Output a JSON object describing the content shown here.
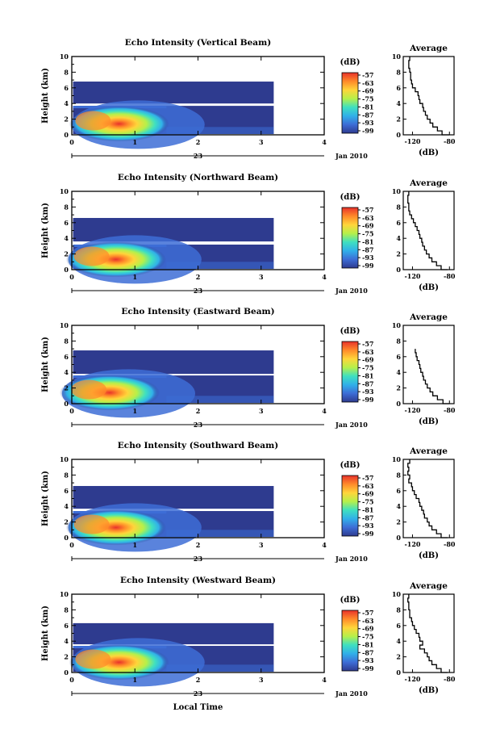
{
  "chart_data": [
    {
      "type": "heatmap",
      "title": "Echo Intensity (Vertical Beam)",
      "ylabel": "Height (km)",
      "xlim": [
        0,
        4
      ],
      "ylim": [
        0,
        10
      ],
      "xticks": [
        "0",
        "1",
        "2",
        "3",
        "4"
      ],
      "yticks": [
        "0",
        "2",
        "4",
        "6",
        "8",
        "10"
      ],
      "day_label": "23",
      "date_label": "Jan 2010",
      "colorbar": {
        "label": "(dB)",
        "ticks": [
          "-57",
          "-63",
          "-69",
          "-75",
          "-81",
          "-87",
          "-93",
          "-99"
        ]
      },
      "data_extent_hours": 3.2,
      "cloud_top_km": 6.8,
      "gap_km": [
        3.7,
        4.0
      ],
      "core_peak_km": 1.0,
      "core_peak_hour": 0.75,
      "profile": {
        "title": "Average",
        "xlabel": "(dB)",
        "xticks": [
          "-120",
          "-80"
        ],
        "xlim": [
          -130,
          -75
        ],
        "ylim": [
          0,
          10
        ],
        "heights": [
          0,
          0.5,
          1,
          1.5,
          2,
          2.5,
          3,
          3.5,
          4,
          4.5,
          5,
          5.5,
          6,
          6.5,
          7,
          7.5,
          8,
          8.5,
          9,
          9.5,
          10
        ],
        "values": [
          -80,
          -88,
          -93,
          -98,
          -101,
          -104,
          -106,
          -108,
          -109,
          -112,
          -113,
          -114,
          -117,
          -120,
          -121,
          -122,
          -122,
          -123,
          -124,
          -124,
          -123
        ]
      }
    },
    {
      "type": "heatmap",
      "title": "Echo Intensity (Northward Beam)",
      "ylabel": "Height (km)",
      "xlim": [
        0,
        4
      ],
      "ylim": [
        0,
        10
      ],
      "xticks": [
        "0",
        "1",
        "2",
        "3",
        "4"
      ],
      "yticks": [
        "0",
        "2",
        "4",
        "6",
        "8",
        "10"
      ],
      "day_label": "23",
      "date_label": "Jan 2010",
      "colorbar": {
        "label": "(dB)",
        "ticks": [
          "-57",
          "-63",
          "-69",
          "-75",
          "-81",
          "-87",
          "-93",
          "-99"
        ]
      },
      "data_extent_hours": 3.2,
      "cloud_top_km": 6.6,
      "gap_km": [
        3.2,
        3.6
      ],
      "core_peak_km": 0.9,
      "core_peak_hour": 0.7,
      "profile": {
        "title": "Average",
        "xlabel": "(dB)",
        "xticks": [
          "-120",
          "-80"
        ],
        "xlim": [
          -130,
          -75
        ],
        "ylim": [
          0,
          10
        ],
        "heights": [
          0,
          0.5,
          1,
          1.5,
          2,
          2.5,
          3,
          3.5,
          4,
          4.5,
          5,
          5.5,
          6,
          6.5,
          7,
          7.5,
          8,
          8.5,
          9,
          9.5,
          10
        ],
        "values": [
          -82,
          -89,
          -94,
          -99,
          -102,
          -105,
          -107,
          -109,
          -110,
          -112,
          -113,
          -115,
          -117,
          -119,
          -121,
          -123,
          -124,
          -124,
          -125,
          -125,
          -124
        ]
      }
    },
    {
      "type": "heatmap",
      "title": "Echo Intensity (Eastward Beam)",
      "ylabel": "Height (km)",
      "xlim": [
        0,
        4
      ],
      "ylim": [
        0,
        10
      ],
      "xticks": [
        "0",
        "1",
        "2",
        "3",
        "4"
      ],
      "yticks": [
        "0",
        "2",
        "4",
        "6",
        "8",
        "10"
      ],
      "day_label": "23",
      "date_label": "Jan 2010",
      "colorbar": {
        "label": "(dB)",
        "ticks": [
          "-57",
          "-63",
          "-69",
          "-75",
          "-81",
          "-87",
          "-93",
          "-99"
        ]
      },
      "data_extent_hours": 3.2,
      "cloud_top_km": 6.8,
      "gap_km": [
        3.6,
        3.8
      ],
      "core_peak_km": 1.0,
      "core_peak_hour": 0.6,
      "profile": {
        "title": "Average",
        "xlabel": "(dB)",
        "xticks": [
          "-120",
          "-80"
        ],
        "xlim": [
          -130,
          -75
        ],
        "ylim": [
          0,
          10
        ],
        "heights": [
          0,
          0.5,
          1,
          1.5,
          2,
          2.5,
          3,
          3.5,
          4,
          4.5,
          5,
          5.5,
          6,
          6.5,
          7
        ],
        "values": [
          -80,
          -87,
          -93,
          -98,
          -101,
          -104,
          -106,
          -108,
          -109,
          -111,
          -112,
          -113,
          -115,
          -116,
          -117
        ]
      }
    },
    {
      "type": "heatmap",
      "title": "Echo Intensity (Southward Beam)",
      "ylabel": "Height (km)",
      "xlim": [
        0,
        4
      ],
      "ylim": [
        0,
        10
      ],
      "xticks": [
        "0",
        "1",
        "2",
        "3",
        "4"
      ],
      "yticks": [
        "0",
        "2",
        "4",
        "6",
        "8",
        "10"
      ],
      "day_label": "23",
      "date_label": "Jan 2010",
      "colorbar": {
        "label": "(dB)",
        "ticks": [
          "-57",
          "-63",
          "-69",
          "-75",
          "-81",
          "-87",
          "-93",
          "-99"
        ]
      },
      "data_extent_hours": 3.2,
      "cloud_top_km": 6.6,
      "gap_km": [
        3.4,
        3.7
      ],
      "core_peak_km": 0.9,
      "core_peak_hour": 0.7,
      "profile": {
        "title": "Average",
        "xlabel": "(dB)",
        "xticks": [
          "-120",
          "-80"
        ],
        "xlim": [
          -130,
          -75
        ],
        "ylim": [
          0,
          10
        ],
        "heights": [
          0,
          0.5,
          1,
          1.5,
          2,
          2.5,
          3,
          3.5,
          4,
          4.5,
          5,
          5.5,
          6,
          6.5,
          7,
          7.5,
          8,
          8.5,
          9,
          9.5,
          10
        ],
        "values": [
          -82,
          -89,
          -94,
          -99,
          -102,
          -104,
          -107,
          -108,
          -110,
          -112,
          -113,
          -116,
          -118,
          -120,
          -121,
          -124,
          -123,
          -125,
          -124,
          -125,
          -123
        ]
      }
    },
    {
      "type": "heatmap",
      "title": "Echo Intensity (Westward Beam)",
      "ylabel": "Height (km)",
      "xlim": [
        0,
        4
      ],
      "ylim": [
        0,
        10
      ],
      "xticks": [
        "0",
        "1",
        "2",
        "3",
        "4"
      ],
      "yticks": [
        "0",
        "2",
        "4",
        "6",
        "8",
        "10"
      ],
      "day_label": "23",
      "date_label": "Jan 2010",
      "xlabel": "Local Time",
      "colorbar": {
        "label": "(dB)",
        "ticks": [
          "-57",
          "-63",
          "-69",
          "-75",
          "-81",
          "-87",
          "-93",
          "-99"
        ]
      },
      "data_extent_hours": 3.2,
      "cloud_top_km": 6.3,
      "gap_km": [
        3.4,
        3.6
      ],
      "core_peak_km": 0.9,
      "core_peak_hour": 0.75,
      "profile": {
        "title": "Average",
        "xlabel": "(dB)",
        "xticks": [
          "-120",
          "-80"
        ],
        "xlim": [
          -130,
          -75
        ],
        "ylim": [
          0,
          10
        ],
        "heights": [
          0,
          0.5,
          1,
          1.5,
          2,
          2.5,
          3,
          3.5,
          4,
          4.5,
          5,
          5.5,
          6,
          6.5,
          7,
          7.5,
          8,
          8.5,
          9,
          9.5,
          10
        ],
        "values": [
          -82,
          -89,
          -94,
          -99,
          -102,
          -104,
          -107,
          -112,
          -109,
          -112,
          -113,
          -116,
          -118,
          -120,
          -121,
          -123,
          -123,
          -124,
          -124,
          -125,
          -124
        ]
      }
    }
  ],
  "colors": {
    "background": "#ffffff",
    "cloud": "#2e3b8f",
    "scale": [
      "#2e3b8f",
      "#3d6dd6",
      "#31b0e9",
      "#3fe0c0",
      "#b6f04a",
      "#ffd53a",
      "#ff8a2a",
      "#e8322b"
    ]
  }
}
